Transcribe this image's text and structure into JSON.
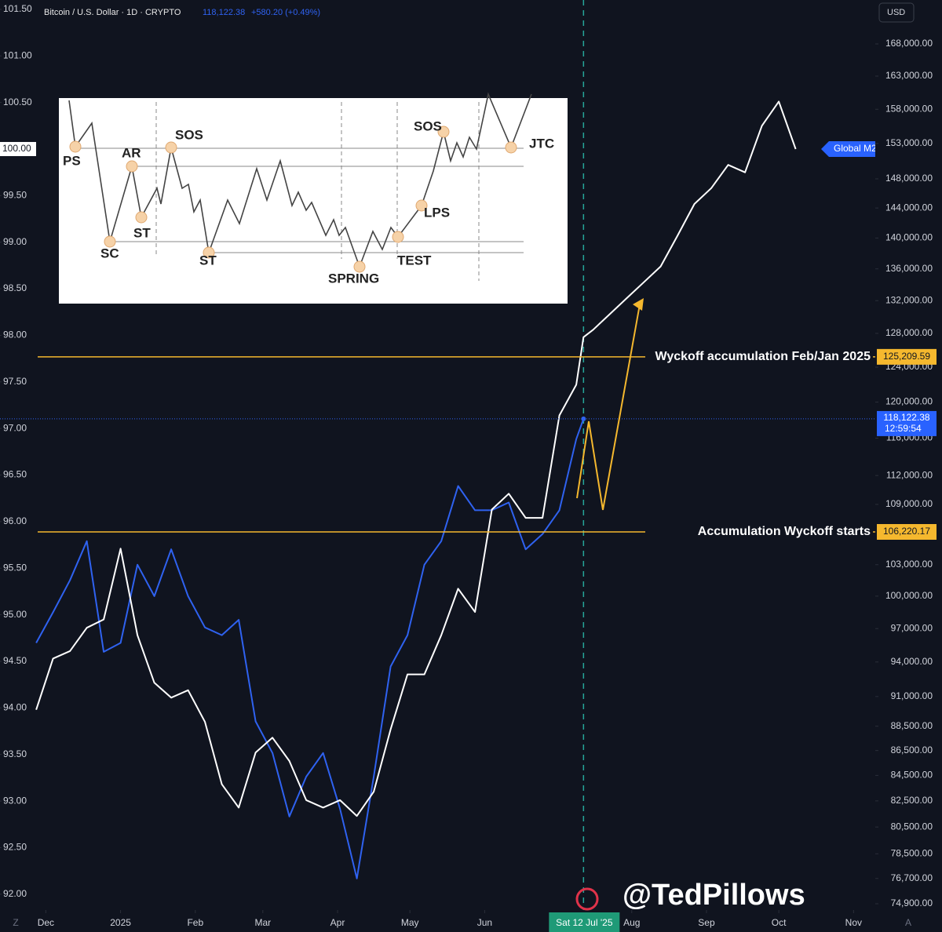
{
  "chart_data": {
    "type": "line",
    "header": {
      "price": "118,122.38",
      "change": "+580.20 (+0.49%)",
      "countdown": "12:59:54",
      "currency": "USD"
    },
    "x": [
      "2024-11-27",
      "2024-12-04",
      "2024-12-11",
      "2024-12-18",
      "2024-12-25",
      "2025-01-01",
      "2025-01-08",
      "2025-01-15",
      "2025-01-22",
      "2025-01-29",
      "2025-02-05",
      "2025-02-12",
      "2025-02-19",
      "2025-02-26",
      "2025-03-05",
      "2025-03-12",
      "2025-03-19",
      "2025-03-26",
      "2025-04-02",
      "2025-04-09",
      "2025-04-16",
      "2025-04-23",
      "2025-04-30",
      "2025-05-07",
      "2025-05-14",
      "2025-05-21",
      "2025-05-28",
      "2025-06-04",
      "2025-06-11",
      "2025-06-18",
      "2025-06-25",
      "2025-07-02",
      "2025-07-09",
      "2025-07-12",
      "2025-07-16",
      "2025-07-23",
      "2025-07-30",
      "2025-08-06",
      "2025-08-13",
      "2025-08-20",
      "2025-08-27",
      "2025-09-03",
      "2025-09-10",
      "2025-09-17",
      "2025-09-24",
      "2025-10-01",
      "2025-10-08"
    ],
    "series": [
      {
        "name": "Bitcoin / U.S. Dollar · 1D · CRYPTO",
        "color": "#2f62f0",
        "axis": "y2",
        "values": [
          95700,
          98500,
          101500,
          105300,
          94900,
          95700,
          103000,
          100000,
          104500,
          100000,
          97100,
          96400,
          97800,
          88900,
          86300,
          81300,
          84400,
          86300,
          81900,
          76700,
          84400,
          93600,
          96400,
          103000,
          105300,
          110900,
          108400,
          108400,
          109200,
          104500,
          106000,
          108400,
          115900,
          118122.38,
          null,
          null,
          null,
          null,
          null,
          null,
          null,
          null,
          null,
          null,
          null,
          null,
          null
        ]
      },
      {
        "name": "Global M2",
        "color": "#ffffff",
        "values": [
          93.98,
          94.53,
          94.61,
          94.86,
          94.95,
          95.71,
          94.78,
          94.27,
          94.11,
          94.19,
          93.85,
          93.18,
          92.93,
          93.52,
          93.68,
          93.43,
          93.01,
          92.93,
          93.01,
          92.84,
          93.1,
          93.77,
          94.36,
          94.36,
          94.78,
          95.28,
          95.03,
          96.13,
          96.3,
          96.04,
          96.04,
          97.14,
          97.47,
          97.98,
          98.06,
          98.23,
          98.4,
          98.57,
          98.74,
          99.07,
          99.41,
          99.58,
          99.83,
          99.75,
          100.25,
          100.51,
          100.0
        ]
      }
    ],
    "xlim": [
      "2024-11-12",
      "2025-11-10"
    ],
    "xticks": [
      {
        "value": "2024-12-01",
        "label": "Dec"
      },
      {
        "value": "2025-01-01",
        "label": "2025"
      },
      {
        "value": "2025-02-01",
        "label": "Feb"
      },
      {
        "value": "2025-03-01",
        "label": "Mar"
      },
      {
        "value": "2025-04-01",
        "label": "Apr"
      },
      {
        "value": "2025-05-01",
        "label": "May"
      },
      {
        "value": "2025-06-01",
        "label": "Jun"
      },
      {
        "value": "2025-08-01",
        "label": "Aug"
      },
      {
        "value": "2025-09-01",
        "label": "Sep"
      },
      {
        "value": "2025-10-01",
        "label": "Oct"
      },
      {
        "value": "2025-11-01",
        "label": "Nov"
      }
    ],
    "ylim": [
      91.83,
      101.6
    ],
    "yticks": [
      {
        "value": 101.5,
        "label": "101.50"
      },
      {
        "value": 101,
        "label": "101.00"
      },
      {
        "value": 100.5,
        "label": "100.50"
      },
      {
        "value": 99.5,
        "label": "99.50"
      },
      {
        "value": 99,
        "label": "99.00"
      },
      {
        "value": 98.5,
        "label": "98.50"
      },
      {
        "value": 98,
        "label": "98.00"
      },
      {
        "value": 97.5,
        "label": "97.50"
      },
      {
        "value": 97,
        "label": "97.00"
      },
      {
        "value": 96.5,
        "label": "96.50"
      },
      {
        "value": 96,
        "label": "96.00"
      },
      {
        "value": 95.5,
        "label": "95.50"
      },
      {
        "value": 95,
        "label": "95.00"
      },
      {
        "value": 94.5,
        "label": "94.50"
      },
      {
        "value": 94,
        "label": "94.00"
      },
      {
        "value": 93.5,
        "label": "93.50"
      },
      {
        "value": 93,
        "label": "93.00"
      },
      {
        "value": 92.5,
        "label": "92.50"
      },
      {
        "value": 92,
        "label": "92.00"
      }
    ],
    "y_marker": {
      "value": 100,
      "label": "100.00"
    },
    "y2lim": [
      74460,
      175080
    ],
    "y2log": true,
    "y2ticks": [
      {
        "value": 168000,
        "label": "168,000.00"
      },
      {
        "value": 163000,
        "label": "163,000.00"
      },
      {
        "value": 158000,
        "label": "158,000.00"
      },
      {
        "value": 153000,
        "label": "153,000.00"
      },
      {
        "value": 148000,
        "label": "148,000.00"
      },
      {
        "value": 144000,
        "label": "144,000.00"
      },
      {
        "value": 140000,
        "label": "140,000.00"
      },
      {
        "value": 136000,
        "label": "136,000.00"
      },
      {
        "value": 132000,
        "label": "132,000.00"
      },
      {
        "value": 128000,
        "label": "128,000.00"
      },
      {
        "value": 124000,
        "label": "124,000.00"
      },
      {
        "value": 120000,
        "label": "120,000.00"
      },
      {
        "value": 116000,
        "label": "116,000.00"
      },
      {
        "value": 112000,
        "label": "112,000.00"
      },
      {
        "value": 109000,
        "label": "109,000.00"
      },
      {
        "value": 103000,
        "label": "103,000.00"
      },
      {
        "value": 100000,
        "label": "100,000.00"
      },
      {
        "value": 97000,
        "label": "97,000.00"
      },
      {
        "value": 94000,
        "label": "94,000.00"
      },
      {
        "value": 91000,
        "label": "91,000.00"
      },
      {
        "value": 88500,
        "label": "88,500.00"
      },
      {
        "value": 86500,
        "label": "86,500.00"
      },
      {
        "value": 84500,
        "label": "84,500.00"
      },
      {
        "value": 82500,
        "label": "82,500.00"
      },
      {
        "value": 80500,
        "label": "80,500.00"
      },
      {
        "value": 78500,
        "label": "78,500.00"
      },
      {
        "value": 76700,
        "label": "76,700.00"
      },
      {
        "value": 74900,
        "label": "74,900.00"
      }
    ],
    "price_lines": [
      {
        "label": "Wyckoff accumulation Feb/Jan 2025",
        "value": 125209.59,
        "value_label": "125,209.59",
        "color": "#f5b82e"
      },
      {
        "label": "Accumulation Wyckoff starts",
        "value": 106220.17,
        "value_label": "106,220.17",
        "color": "#f5b82e"
      }
    ],
    "crosshair": {
      "x": "2025-07-12",
      "label": "Sat 12 Jul '25"
    },
    "grid": false
  },
  "inset": {
    "labels": [
      "PS",
      "SC",
      "AR",
      "ST",
      "SOS",
      "ST",
      "SPRING",
      "TEST",
      "LPS",
      "SOS",
      "JTC"
    ]
  },
  "watermark": "@TedPillows",
  "corner_left": "Z",
  "corner_right": "A"
}
